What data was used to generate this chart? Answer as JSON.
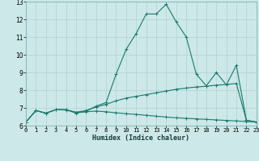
{
  "xlabel": "Humidex (Indice chaleur)",
  "xlim": [
    0,
    23
  ],
  "ylim": [
    6,
    13
  ],
  "xticks": [
    0,
    1,
    2,
    3,
    4,
    5,
    6,
    7,
    8,
    9,
    10,
    11,
    12,
    13,
    14,
    15,
    16,
    17,
    18,
    19,
    20,
    21,
    22,
    23
  ],
  "yticks": [
    6,
    7,
    8,
    9,
    10,
    11,
    12,
    13
  ],
  "bg_color": "#cce8e8",
  "line_color": "#1a7a6e",
  "grid_color": "#aacccc",
  "line1_x": [
    0,
    1,
    2,
    3,
    4,
    5,
    6,
    7,
    8,
    9,
    10,
    11,
    12,
    13,
    14,
    15,
    16,
    17,
    18,
    19,
    20,
    21,
    22,
    23
  ],
  "line1_y": [
    6.2,
    6.85,
    6.7,
    6.9,
    6.9,
    6.7,
    6.8,
    7.1,
    7.3,
    8.9,
    10.3,
    11.2,
    12.3,
    12.3,
    12.85,
    11.85,
    11.0,
    8.9,
    8.25,
    9.0,
    8.3,
    9.4,
    6.3,
    6.2
  ],
  "line2_x": [
    0,
    1,
    2,
    3,
    4,
    5,
    6,
    7,
    8,
    9,
    10,
    11,
    12,
    13,
    14,
    15,
    16,
    17,
    18,
    19,
    20,
    21,
    22,
    23
  ],
  "line2_y": [
    6.2,
    6.85,
    6.7,
    6.9,
    6.9,
    6.75,
    6.85,
    7.05,
    7.2,
    7.4,
    7.55,
    7.65,
    7.75,
    7.85,
    7.95,
    8.05,
    8.12,
    8.18,
    8.22,
    8.28,
    8.32,
    8.38,
    6.3,
    6.2
  ],
  "line3_x": [
    0,
    1,
    2,
    3,
    4,
    5,
    6,
    7,
    8,
    9,
    10,
    11,
    12,
    13,
    14,
    15,
    16,
    17,
    18,
    19,
    20,
    21,
    22,
    23
  ],
  "line3_y": [
    6.2,
    6.85,
    6.7,
    6.9,
    6.88,
    6.75,
    6.78,
    6.82,
    6.78,
    6.72,
    6.67,
    6.63,
    6.58,
    6.53,
    6.48,
    6.44,
    6.41,
    6.38,
    6.35,
    6.32,
    6.29,
    6.26,
    6.23,
    6.2
  ],
  "marker": "+",
  "markersize": 3,
  "linewidth": 0.8,
  "tick_fontsize": 5.0,
  "xlabel_fontsize": 6.0
}
